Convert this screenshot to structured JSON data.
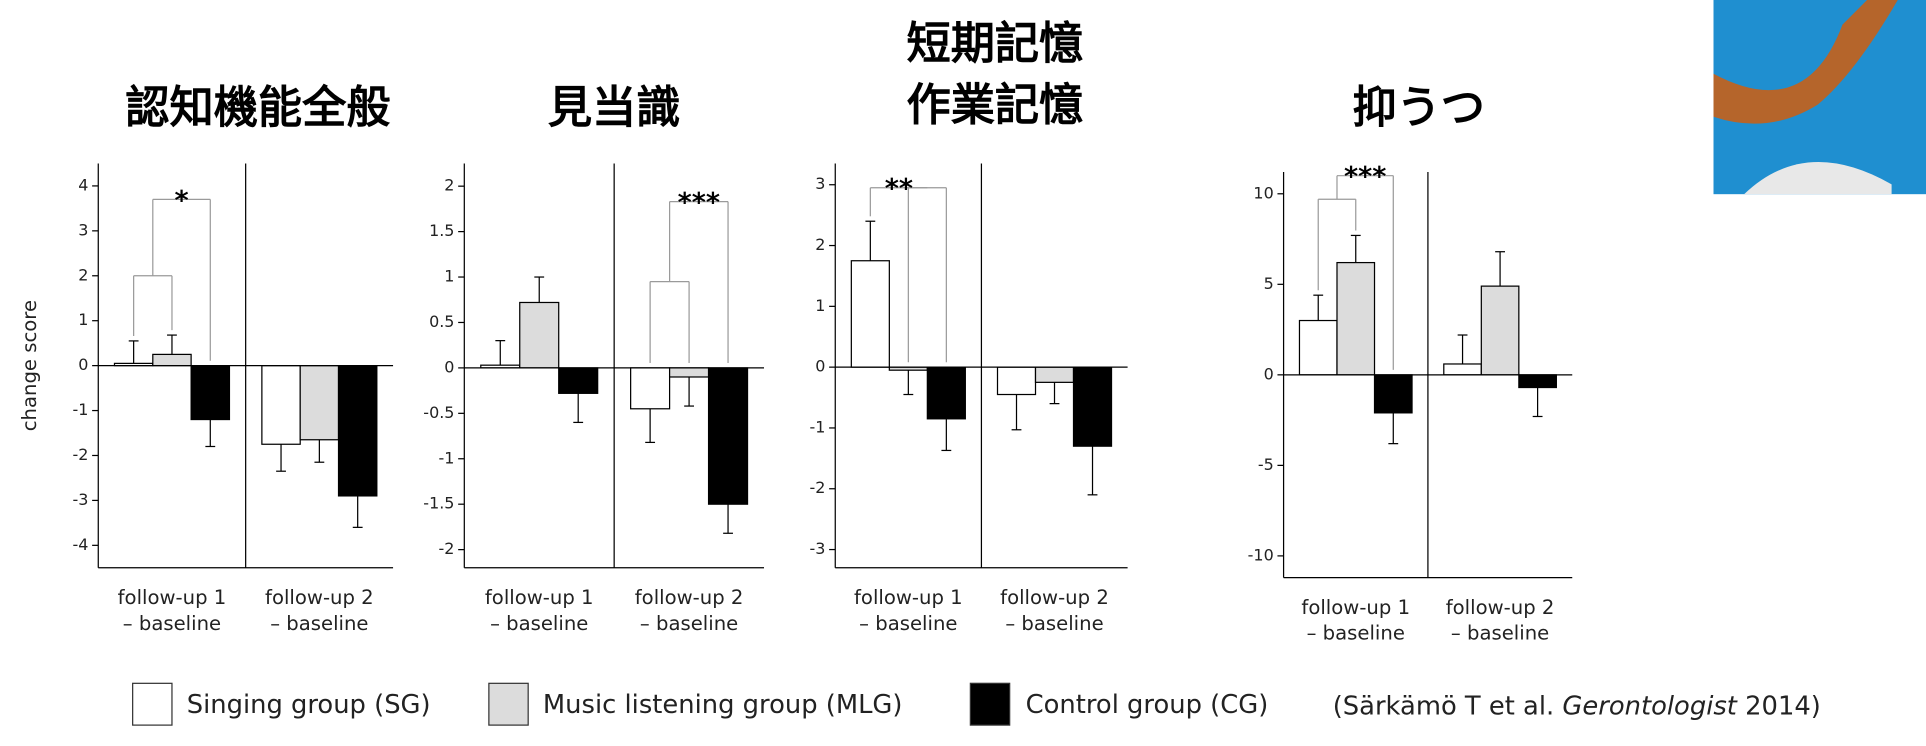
{
  "chart_data": [
    {
      "type": "bar",
      "title": [
        "認知機能全般"
      ],
      "ylabel": "change score",
      "categories": [
        [
          "follow-up 1",
          "– baseline"
        ],
        [
          "follow-up 2",
          "– baseline"
        ]
      ],
      "series": [
        {
          "color": "#ffffff",
          "values": [
            0.05,
            -1.75
          ],
          "errors": [
            0.5,
            0.6
          ]
        },
        {
          "color": "#dcdcdc",
          "values": [
            0.25,
            -1.65
          ],
          "errors": [
            0.43,
            0.5
          ]
        },
        {
          "color": "#000000",
          "values": [
            -1.2,
            -2.9
          ],
          "errors": [
            0.6,
            0.7
          ]
        }
      ],
      "ylim": [
        -4.5,
        4.5
      ],
      "yticks": [
        -4,
        -3,
        -2,
        -1,
        0,
        1,
        2,
        3,
        4
      ],
      "annotation": "*"
    },
    {
      "type": "bar",
      "title": [
        "見当識"
      ],
      "categories": [
        [
          "follow-up 1",
          "– baseline"
        ],
        [
          "follow-up 2",
          "– baseline"
        ]
      ],
      "series": [
        {
          "color": "#ffffff",
          "values": [
            0.03,
            -0.45
          ],
          "errors": [
            0.27,
            0.37
          ]
        },
        {
          "color": "#dcdcdc",
          "values": [
            0.72,
            -0.1
          ],
          "errors": [
            0.28,
            0.32
          ]
        },
        {
          "color": "#000000",
          "values": [
            -0.28,
            -1.5
          ],
          "errors": [
            0.32,
            0.32
          ]
        }
      ],
      "ylim": [
        -2.2,
        2.25
      ],
      "yticks": [
        -2,
        -1.5,
        -1,
        -0.5,
        0,
        0.5,
        1,
        1.5,
        2
      ],
      "annotation": "***"
    },
    {
      "type": "bar",
      "title": [
        "短期記憶",
        "作業記憶"
      ],
      "categories": [
        [
          "follow-up 1",
          "– baseline"
        ],
        [
          "follow-up 2",
          "– baseline"
        ]
      ],
      "series": [
        {
          "color": "#ffffff",
          "values": [
            1.75,
            -0.45
          ],
          "errors": [
            0.65,
            0.58
          ]
        },
        {
          "color": "#dcdcdc",
          "values": [
            -0.05,
            -0.25
          ],
          "errors": [
            0.4,
            0.35
          ]
        },
        {
          "color": "#000000",
          "values": [
            -0.85,
            -1.3
          ],
          "errors": [
            0.52,
            0.8
          ]
        }
      ],
      "ylim": [
        -3.3,
        3.35
      ],
      "yticks": [
        -3,
        -2,
        -1,
        0,
        1,
        2,
        3
      ],
      "annotation": "**"
    },
    {
      "type": "bar",
      "title": [
        "抑うつ"
      ],
      "categories": [
        [
          "follow-up 1",
          "– baseline"
        ],
        [
          "follow-up 2",
          "– baseline"
        ]
      ],
      "series": [
        {
          "color": "#ffffff",
          "values": [
            3.0,
            0.6
          ],
          "errors": [
            1.4,
            1.6
          ]
        },
        {
          "color": "#dcdcdc",
          "values": [
            6.2,
            4.9
          ],
          "errors": [
            1.5,
            1.9
          ]
        },
        {
          "color": "#000000",
          "values": [
            -2.1,
            -0.7
          ],
          "errors": [
            1.7,
            1.6
          ]
        }
      ],
      "ylim": [
        -11.2,
        11.2
      ],
      "yticks": [
        -10,
        -5,
        0,
        5,
        10
      ],
      "annotation": "***"
    }
  ],
  "legend": [
    {
      "name": "Singing group (SG)",
      "color": "#ffffff"
    },
    {
      "name": "Music listening group (MLG)",
      "color": "#dcdcdc"
    },
    {
      "name": "Control group (CG)",
      "color": "#000000"
    }
  ],
  "citation": [
    "(Särkämö T et al. ",
    "Gerontologist",
    " 2014)"
  ]
}
